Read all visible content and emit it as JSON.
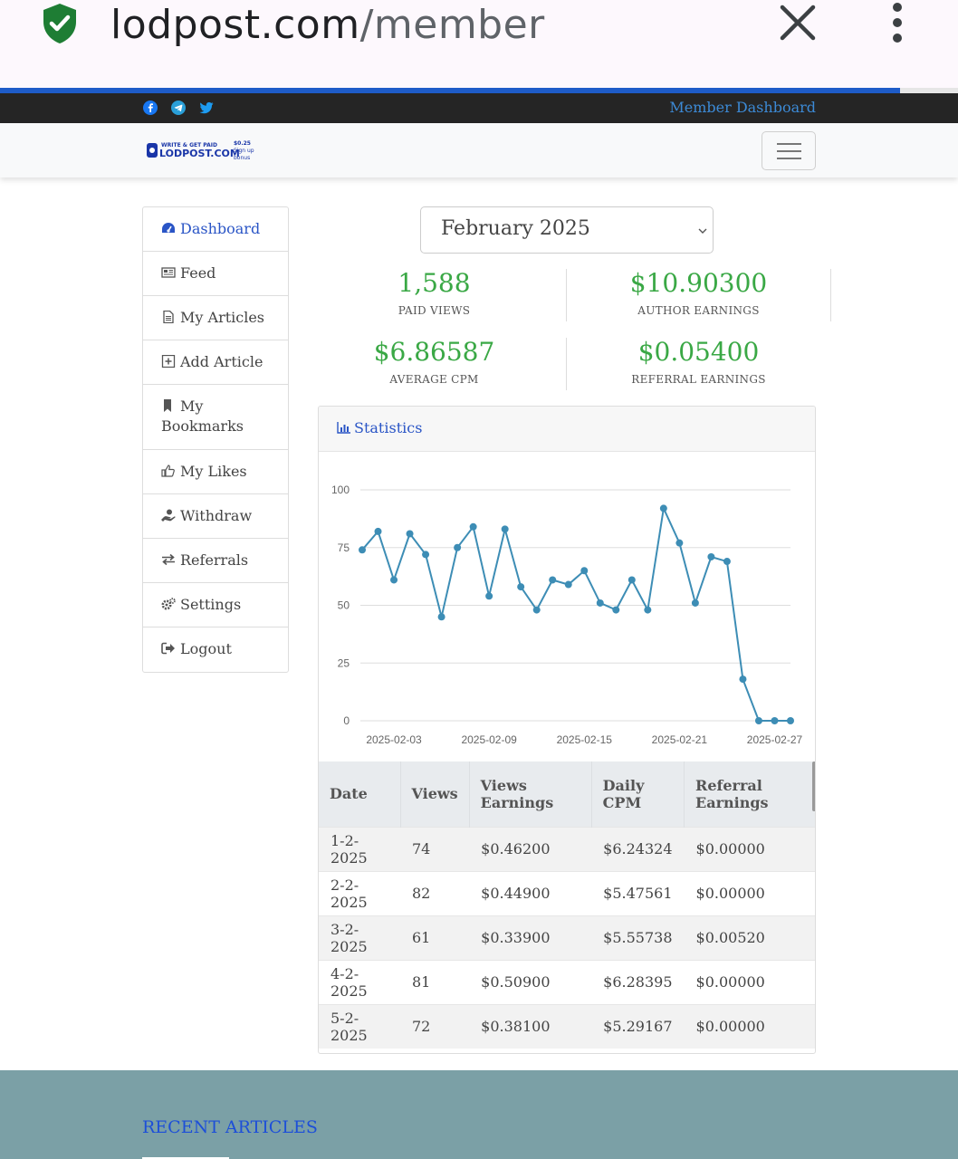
{
  "browser": {
    "url_host": "lodpost.com",
    "url_path": "/member"
  },
  "topbar": {
    "member_link": "Member Dashboard"
  },
  "sidebar": {
    "items": [
      {
        "label": "Dashboard"
      },
      {
        "label": "Feed"
      },
      {
        "label": "My Articles"
      },
      {
        "label": "Add Article"
      },
      {
        "label": "My Bookmarks"
      },
      {
        "label": "My Likes"
      },
      {
        "label": "Withdraw"
      },
      {
        "label": "Referrals"
      },
      {
        "label": "Settings"
      },
      {
        "label": "Logout"
      }
    ]
  },
  "month_select": {
    "value": "February 2025"
  },
  "stats": {
    "paid_views": {
      "value": "1,588",
      "label": "PAID VIEWS"
    },
    "author_earnings": {
      "value": "$10.90300",
      "label": "AUTHOR EARNINGS"
    },
    "average_cpm": {
      "value": "$6.86587",
      "label": "AVERAGE CPM"
    },
    "referral_earnings": {
      "value": "$0.05400",
      "label": "REFERRAL EARNINGS"
    }
  },
  "statistics_card": {
    "title": "Statistics"
  },
  "chart_data": {
    "type": "line",
    "x": [
      "2025-02-01",
      "2025-02-02",
      "2025-02-03",
      "2025-02-04",
      "2025-02-05",
      "2025-02-06",
      "2025-02-07",
      "2025-02-08",
      "2025-02-09",
      "2025-02-10",
      "2025-02-11",
      "2025-02-12",
      "2025-02-13",
      "2025-02-14",
      "2025-02-15",
      "2025-02-16",
      "2025-02-17",
      "2025-02-18",
      "2025-02-19",
      "2025-02-20",
      "2025-02-21",
      "2025-02-22",
      "2025-02-23",
      "2025-02-24",
      "2025-02-25",
      "2025-02-26",
      "2025-02-27",
      "2025-02-28"
    ],
    "series": [
      {
        "values": [
          74,
          82,
          61,
          81,
          72,
          45,
          75,
          84,
          54,
          83,
          58,
          48,
          61,
          59,
          65,
          51,
          48,
          61,
          48,
          92,
          77,
          51,
          71,
          69,
          18,
          0,
          0,
          0
        ]
      }
    ],
    "x_tick_labels": [
      "2025-02-03",
      "2025-02-09",
      "2025-02-15",
      "2025-02-21",
      "2025-02-27"
    ],
    "y_ticks": [
      0,
      25,
      50,
      75,
      100
    ],
    "ylim": [
      0,
      100
    ],
    "grid": true,
    "color": "#3d8db5"
  },
  "table": {
    "headers": [
      "Date",
      "Views",
      "Views Earnings",
      "Daily CPM",
      "Referral Earnings"
    ],
    "rows": [
      [
        "1-2-2025",
        "74",
        "$0.46200",
        "$6.24324",
        "$0.00000"
      ],
      [
        "2-2-2025",
        "82",
        "$0.44900",
        "$5.47561",
        "$0.00000"
      ],
      [
        "3-2-2025",
        "61",
        "$0.33900",
        "$5.55738",
        "$0.00520"
      ],
      [
        "4-2-2025",
        "81",
        "$0.50900",
        "$6.28395",
        "$0.00000"
      ],
      [
        "5-2-2025",
        "72",
        "$0.38100",
        "$5.29167",
        "$0.00000"
      ]
    ]
  },
  "footer": {
    "title": "RECENT ARTICLES"
  }
}
